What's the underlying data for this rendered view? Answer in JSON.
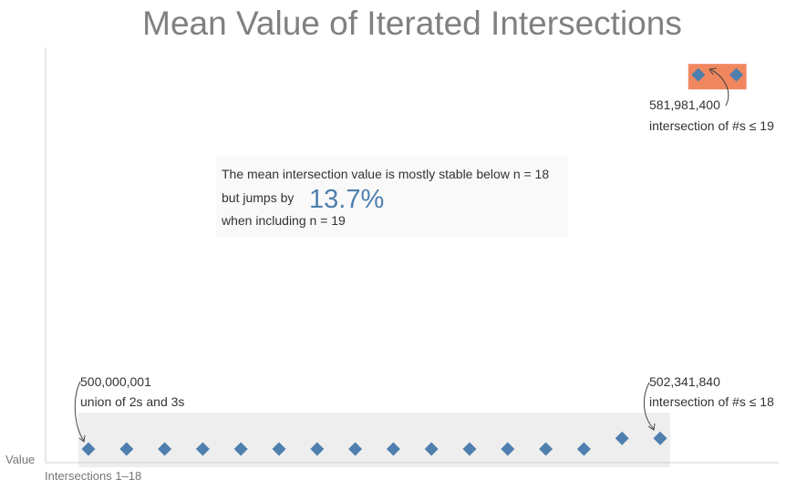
{
  "chart_data": {
    "type": "scatter",
    "title": "Mean Value of Iterated Intersections",
    "xlabel": "Intersections 1–18",
    "ylabel": "Value",
    "marker": "diamond",
    "colors": {
      "marker": "#4e7fae",
      "band_main": "#eeeeee",
      "band_highlight": "#f0875f",
      "callout_bg": "#f9f9f9",
      "callout_accent": "#4e7fae"
    },
    "series": [
      {
        "x": [
          1,
          2,
          3,
          4,
          5,
          6,
          7,
          8,
          9,
          10,
          11,
          12,
          13,
          14,
          15,
          16
        ],
        "y": [
          500000001,
          500000001,
          500000001,
          500000001,
          500000001,
          500000001,
          500000001,
          500000001,
          500000001,
          500000001,
          500000001,
          500000001,
          500000001,
          500000001,
          502341840,
          502341840
        ]
      },
      {
        "x": [
          17,
          18
        ],
        "y": [
          581981400,
          581981400
        ]
      }
    ],
    "ylim": [
      497000000,
      588000000
    ],
    "annotations": [
      {
        "value": "500,000,001",
        "label": "union of 2s and 3s"
      },
      {
        "value": "502,341,840",
        "label": "intersection of #s ≤ 18"
      },
      {
        "value": "581,981,400",
        "label": "intersection of #s ≤ 19"
      }
    ],
    "callout": {
      "line1": "The mean intersection value is mostly stable below n = 18",
      "line2_prefix": "but jumps by",
      "highlight": "13.7%",
      "line3": "when including n = 19"
    }
  }
}
